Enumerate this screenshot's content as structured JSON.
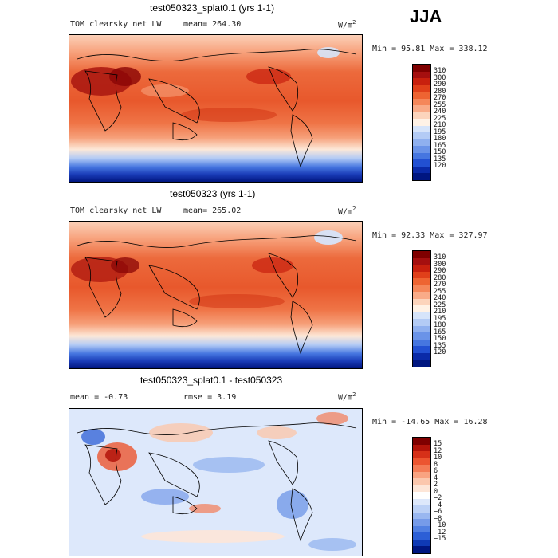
{
  "season": "JJA",
  "panels": [
    {
      "id": "panel-1",
      "title": "test050323_splat0.1 (yrs 1-1)",
      "variable": "TOM clearsky net LW",
      "mean_label": "mean=",
      "mean_value": "264.30",
      "units": "W/m",
      "units_exp": "2",
      "min_label": "Min =",
      "min_value": "95.81",
      "max_label": "Max =",
      "max_value": "338.12",
      "colorbar_labels": [
        "310",
        "300",
        "290",
        "280",
        "270",
        "255",
        "240",
        "225",
        "210",
        "195",
        "180",
        "165",
        "150",
        "135",
        "120"
      ]
    },
    {
      "id": "panel-2",
      "title": "test050323 (yrs 1-1)",
      "variable": "TOM clearsky net LW",
      "mean_label": "mean=",
      "mean_value": "265.02",
      "units": "W/m",
      "units_exp": "2",
      "min_label": "Min =",
      "min_value": "92.33",
      "max_label": "Max =",
      "max_value": "327.97",
      "colorbar_labels": [
        "310",
        "300",
        "290",
        "280",
        "270",
        "255",
        "240",
        "225",
        "210",
        "195",
        "180",
        "165",
        "150",
        "135",
        "120"
      ]
    },
    {
      "id": "panel-3",
      "title": "test050323_splat0.1 - test050323",
      "mean_label": "mean =",
      "mean_value": "-0.73",
      "rmse_label": "rmse =",
      "rmse_value": "3.19",
      "units": "W/m",
      "units_exp": "2",
      "min_label": "Min =",
      "min_value": "-14.65",
      "max_label": "Max =",
      "max_value": "16.28",
      "colorbar_labels": [
        "15",
        "12",
        "10",
        "8",
        "6",
        "4",
        "2",
        "0",
        "−2",
        "−4",
        "−6",
        "−8",
        "−10",
        "−12",
        "−15"
      ]
    }
  ],
  "colors": {
    "abs_scale": [
      "#7f0000",
      "#a50f0f",
      "#c8200e",
      "#e0401a",
      "#ee6432",
      "#f5875a",
      "#f9ab88",
      "#fcd4bc",
      "#fff2e6",
      "#d6e4fa",
      "#b3cbf5",
      "#8fb0ef",
      "#6a93e8",
      "#4676e0",
      "#2250d2",
      "#0a2aa8",
      "#001680"
    ],
    "diff_scale": [
      "#7f0000",
      "#b3140a",
      "#d63018",
      "#ec5530",
      "#f47c56",
      "#f9a381",
      "#fbc7ad",
      "#fde6d8",
      "#ffffff",
      "#dde8fb",
      "#bcd1f6",
      "#99b7f0",
      "#769be9",
      "#5180e2",
      "#2c5fd6",
      "#0f3ab5",
      "#001680"
    ]
  }
}
